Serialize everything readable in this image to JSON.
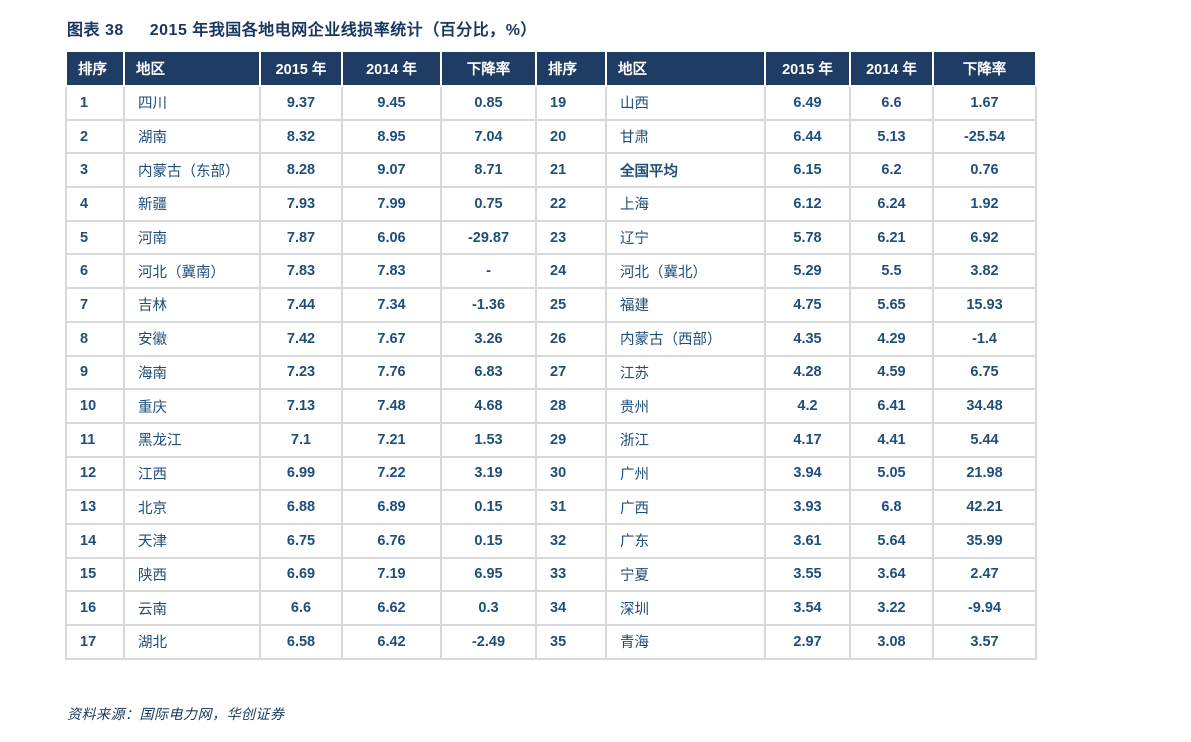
{
  "title": {
    "figure_label": "图表 38",
    "caption": "2015 年我国各地电网企业线损率统计（百分比，%）"
  },
  "columns": [
    "排序",
    "地区",
    "2015 年",
    "2014 年",
    "下降率"
  ],
  "colors": {
    "header_bg": "#1F3C64",
    "header_text": "#FFFFFF",
    "body_text": "#1F4E79",
    "title_text": "#17375E",
    "decline_up_red": "#FF0000",
    "decline_down_green": "#00B050",
    "grid_border": "#D9D9D9",
    "page_bg": "#FFFFFF"
  },
  "rows": [
    {
      "left": {
        "rank": "1",
        "region": "四川",
        "y2015": "9.37",
        "y2014": "9.45",
        "decline": "0.85",
        "decline_color": "red",
        "highlight": false
      },
      "right": {
        "rank": "19",
        "region": "山西",
        "y2015": "6.49",
        "y2014": "6.6",
        "decline": "1.67",
        "decline_color": "red",
        "highlight": false
      }
    },
    {
      "left": {
        "rank": "2",
        "region": "湖南",
        "y2015": "8.32",
        "y2014": "8.95",
        "decline": "7.04",
        "decline_color": "red",
        "highlight": false
      },
      "right": {
        "rank": "20",
        "region": "甘肃",
        "y2015": "6.44",
        "y2014": "5.13",
        "decline": "-25.54",
        "decline_color": "green",
        "highlight": false
      }
    },
    {
      "left": {
        "rank": "3",
        "region": "内蒙古（东部）",
        "y2015": "8.28",
        "y2014": "9.07",
        "decline": "8.71",
        "decline_color": "red",
        "highlight": false
      },
      "right": {
        "rank": "21",
        "region": "全国平均",
        "y2015": "6.15",
        "y2014": "6.2",
        "decline": "0.76",
        "decline_color": "red",
        "highlight": true
      }
    },
    {
      "left": {
        "rank": "4",
        "region": "新疆",
        "y2015": "7.93",
        "y2014": "7.99",
        "decline": "0.75",
        "decline_color": "red",
        "highlight": false
      },
      "right": {
        "rank": "22",
        "region": "上海",
        "y2015": "6.12",
        "y2014": "6.24",
        "decline": "1.92",
        "decline_color": "red",
        "highlight": false
      }
    },
    {
      "left": {
        "rank": "5",
        "region": "河南",
        "y2015": "7.87",
        "y2014": "6.06",
        "decline": "-29.87",
        "decline_color": "green",
        "highlight": false
      },
      "right": {
        "rank": "23",
        "region": "辽宁",
        "y2015": "5.78",
        "y2014": "6.21",
        "decline": "6.92",
        "decline_color": "red",
        "highlight": false
      }
    },
    {
      "left": {
        "rank": "6",
        "region": "河北（冀南）",
        "y2015": "7.83",
        "y2014": "7.83",
        "decline": "-",
        "decline_color": "green",
        "highlight": false
      },
      "right": {
        "rank": "24",
        "region": "河北（冀北）",
        "y2015": "5.29",
        "y2014": "5.5",
        "decline": "3.82",
        "decline_color": "red",
        "highlight": false
      }
    },
    {
      "left": {
        "rank": "7",
        "region": "吉林",
        "y2015": "7.44",
        "y2014": "7.34",
        "decline": "-1.36",
        "decline_color": "green",
        "highlight": false
      },
      "right": {
        "rank": "25",
        "region": "福建",
        "y2015": "4.75",
        "y2014": "5.65",
        "decline": "15.93",
        "decline_color": "red",
        "highlight": false
      }
    },
    {
      "left": {
        "rank": "8",
        "region": "安徽",
        "y2015": "7.42",
        "y2014": "7.67",
        "decline": "3.26",
        "decline_color": "red",
        "highlight": false
      },
      "right": {
        "rank": "26",
        "region": "内蒙古（西部）",
        "y2015": "4.35",
        "y2014": "4.29",
        "decline": "-1.4",
        "decline_color": "green",
        "highlight": false
      }
    },
    {
      "left": {
        "rank": "9",
        "region": "海南",
        "y2015": "7.23",
        "y2014": "7.76",
        "decline": "6.83",
        "decline_color": "red",
        "highlight": false
      },
      "right": {
        "rank": "27",
        "region": "江苏",
        "y2015": "4.28",
        "y2014": "4.59",
        "decline": "6.75",
        "decline_color": "red",
        "highlight": false
      }
    },
    {
      "left": {
        "rank": "10",
        "region": "重庆",
        "y2015": "7.13",
        "y2014": "7.48",
        "decline": "4.68",
        "decline_color": "red",
        "highlight": false
      },
      "right": {
        "rank": "28",
        "region": "贵州",
        "y2015": "4.2",
        "y2014": "6.41",
        "decline": "34.48",
        "decline_color": "red",
        "highlight": false
      }
    },
    {
      "left": {
        "rank": "11",
        "region": "黑龙江",
        "y2015": "7.1",
        "y2014": "7.21",
        "decline": "1.53",
        "decline_color": "red",
        "highlight": false
      },
      "right": {
        "rank": "29",
        "region": "浙江",
        "y2015": "4.17",
        "y2014": "4.41",
        "decline": "5.44",
        "decline_color": "red",
        "highlight": false
      }
    },
    {
      "left": {
        "rank": "12",
        "region": "江西",
        "y2015": "6.99",
        "y2014": "7.22",
        "decline": "3.19",
        "decline_color": "red",
        "highlight": false
      },
      "right": {
        "rank": "30",
        "region": "广州",
        "y2015": "3.94",
        "y2014": "5.05",
        "decline": "21.98",
        "decline_color": "red",
        "highlight": false
      }
    },
    {
      "left": {
        "rank": "13",
        "region": "北京",
        "y2015": "6.88",
        "y2014": "6.89",
        "decline": "0.15",
        "decline_color": "red",
        "highlight": false
      },
      "right": {
        "rank": "31",
        "region": "广西",
        "y2015": "3.93",
        "y2014": "6.8",
        "decline": "42.21",
        "decline_color": "red",
        "highlight": false
      }
    },
    {
      "left": {
        "rank": "14",
        "region": "天津",
        "y2015": "6.75",
        "y2014": "6.76",
        "decline": "0.15",
        "decline_color": "red",
        "highlight": false
      },
      "right": {
        "rank": "32",
        "region": "广东",
        "y2015": "3.61",
        "y2014": "5.64",
        "decline": "35.99",
        "decline_color": "red",
        "highlight": false
      }
    },
    {
      "left": {
        "rank": "15",
        "region": "陕西",
        "y2015": "6.69",
        "y2014": "7.19",
        "decline": "6.95",
        "decline_color": "red",
        "highlight": false
      },
      "right": {
        "rank": "33",
        "region": "宁夏",
        "y2015": "3.55",
        "y2014": "3.64",
        "decline": "2.47",
        "decline_color": "red",
        "highlight": false
      }
    },
    {
      "left": {
        "rank": "16",
        "region": "云南",
        "y2015": "6.6",
        "y2014": "6.62",
        "decline": "0.3",
        "decline_color": "red",
        "highlight": false
      },
      "right": {
        "rank": "34",
        "region": "深圳",
        "y2015": "3.54",
        "y2014": "3.22",
        "decline": "-9.94",
        "decline_color": "green",
        "highlight": false
      }
    },
    {
      "left": {
        "rank": "17",
        "region": "湖北",
        "y2015": "6.58",
        "y2014": "6.42",
        "decline": "-2.49",
        "decline_color": "green",
        "highlight": false
      },
      "right": {
        "rank": "35",
        "region": "青海",
        "y2015": "2.97",
        "y2014": "3.08",
        "decline": "3.57",
        "decline_color": "red",
        "highlight": false
      }
    }
  ],
  "source": "资料来源：国际电力网，华创证券"
}
